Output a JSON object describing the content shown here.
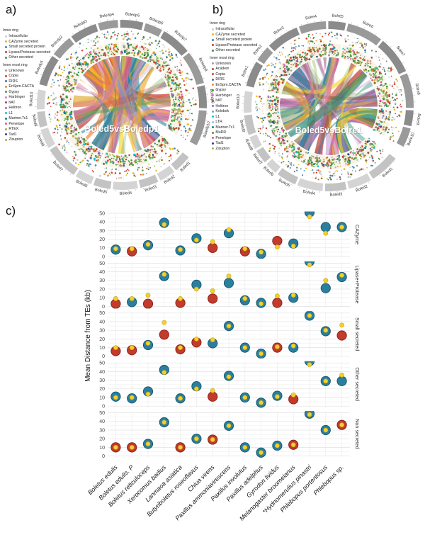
{
  "figure": {
    "panel_a": {
      "label": "a)",
      "center_label": "Boled5vsBoledp1",
      "seed": 20,
      "legend": {
        "inner_ring_title": "Inner ring",
        "innermost_title": "Inner most ring",
        "inner_ring_items": [
          {
            "label": "Intracellular",
            "color": "#cfcfcf"
          },
          {
            "label": "CAZyme secreted",
            "color": "#e8b71f"
          },
          {
            "label": "Small secreted protein",
            "color": "#3d7fae"
          },
          {
            "label": "Lipase/Protease secreted",
            "color": "#cc3a2e"
          },
          {
            "label": "Other secreted",
            "color": "#4c8b4a"
          }
        ],
        "innermost_items": [
          {
            "label": "Unknown",
            "color": "#9e9e9e"
          },
          {
            "label": "Copia",
            "color": "#d93a2b"
          },
          {
            "label": "DIRS",
            "color": "#3a6fb0"
          },
          {
            "label": "EnSpm.CACTA",
            "color": "#f08c1e"
          },
          {
            "label": "Gypsy",
            "color": "#3f9b45"
          },
          {
            "label": "Harbinger",
            "color": "#e377c2"
          },
          {
            "label": "hAT",
            "color": "#8c564b"
          },
          {
            "label": "Helitron",
            "color": "#9467bd"
          },
          {
            "label": "L1",
            "color": "#17becf"
          },
          {
            "label": "Mariner.Tc1",
            "color": "#0e8577"
          },
          {
            "label": "Penelope",
            "color": "#d9578d"
          },
          {
            "label": "RTEX",
            "color": "#b8a832"
          },
          {
            "label": "Tad1",
            "color": "#2b3f8c"
          },
          {
            "label": "Zisupton",
            "color": "#caa83c"
          }
        ]
      },
      "top_segments": [
        "Boledp1",
        "Boledp2",
        "Boledp3",
        "Boledp4",
        "Boledp5",
        "Boledp6",
        "Boledp7",
        "Boledp8",
        "Boledp9",
        "Boledp10"
      ],
      "bottom_segments": [
        "Boled1",
        "Boled2",
        "Boled3",
        "Boled4",
        "Boled5",
        "Boled6",
        "Boled7",
        "Boled8",
        "Boled9",
        "Boled10"
      ],
      "chord_colors": [
        "#f2a21c",
        "#f5d327",
        "#e8762c",
        "#2a7f9e",
        "#e05c8a",
        "#c75d9a",
        "#8c6bb1",
        "#c94a3d",
        "#69a953",
        "#d98ca6",
        "#c9b1d6",
        "#e3b94f",
        "#b0778c",
        "#7f9fd1"
      ]
    },
    "panel_b": {
      "label": "b)",
      "center_label": "Boled5vsBolre1",
      "seed": 77,
      "legend": {
        "inner_ring_title": "Inner ring",
        "innermost_title": "Inner most ring",
        "inner_ring_items": [
          {
            "label": "Intracellular",
            "color": "#cfcfcf"
          },
          {
            "label": "CAZyme secreted",
            "color": "#e8b71f"
          },
          {
            "label": "Small secreted protein",
            "color": "#3d7fae"
          },
          {
            "label": "Lipase/Protease secreted",
            "color": "#cc3a2e"
          },
          {
            "label": "Other secreted",
            "color": "#4c8b4a"
          }
        ],
        "innermost_items": [
          {
            "label": "Unknown",
            "color": "#9e9e9e"
          },
          {
            "label": "Academ",
            "color": "#a0522d"
          },
          {
            "label": "Copia",
            "color": "#d93a2b"
          },
          {
            "label": "DIRS",
            "color": "#3a6fb0"
          },
          {
            "label": "EnSpm.CACTA",
            "color": "#f08c1e"
          },
          {
            "label": "Gypsy",
            "color": "#3f9b45"
          },
          {
            "label": "Harbinger",
            "color": "#e377c2"
          },
          {
            "label": "hAT",
            "color": "#8c564b"
          },
          {
            "label": "Helitron",
            "color": "#9467bd"
          },
          {
            "label": "Kolobok",
            "color": "#5ab4ac"
          },
          {
            "label": "L1",
            "color": "#17becf"
          },
          {
            "label": "LTR",
            "color": "#9db8e8"
          },
          {
            "label": "Mariner.Tc1",
            "color": "#0e8577"
          },
          {
            "label": "MuDR",
            "color": "#7f7f2a"
          },
          {
            "label": "Penelope",
            "color": "#d9578d"
          },
          {
            "label": "Tad1",
            "color": "#2b3f8c"
          },
          {
            "label": "Zisupton",
            "color": "#caa83c"
          }
        ]
      },
      "top_segments": [
        "Bolre1",
        "Bolre2",
        "Bolre3",
        "Bolre4",
        "Bolre5",
        "Bolre6",
        "Bolre7",
        "Bolre8",
        "Bolre9",
        "Bolre10"
      ],
      "bottom_segments": [
        "Boled1",
        "Boled2",
        "Boled3",
        "Boled4",
        "Boled5",
        "Boled6",
        "Boled7",
        "Boled8",
        "Boled9",
        "Boled10"
      ],
      "chord_colors": [
        "#f2a21c",
        "#f5d327",
        "#1f8a70",
        "#2a7f9e",
        "#e05c8a",
        "#c75d9a",
        "#8c6bb1",
        "#6b7f8f",
        "#c94a3d",
        "#d98ca6",
        "#c9b1d6",
        "#a8c97f",
        "#8c5b3f",
        "#d4b2d8"
      ]
    },
    "panel_c": {
      "label": "c)"
    }
  },
  "chart_data": {
    "type": "scatter",
    "title": "",
    "xlabel": "",
    "ylabel": "Mean Distance from TEs (kb)",
    "ylim": [
      0,
      50
    ],
    "yticks": [
      0,
      10,
      20,
      30,
      40,
      50
    ],
    "grid": true,
    "point_styles": {
      "teal": {
        "fill": "#2b7f9e",
        "stroke": "#175b74"
      },
      "red": {
        "fill": "#c23b2d",
        "stroke": "#8c2318"
      },
      "yellow": {
        "fill": "#f3d02b",
        "stroke": "#c7a417"
      }
    },
    "categories": [
      "Boletus edulis",
      "Boletus edulis. P",
      "Boletus reticuloceps",
      "Xerocomus badius",
      "Lanmaoa asiatica",
      "Butyriboletus roseoflavus",
      "Chiua virens",
      "Paxillus ammoniavirescens",
      "Paxillus involutus",
      "Paxillus adelphus",
      "Gyrodon lividus",
      "Melanogaster broomeianus",
      "*Hydnomerulius pinastri",
      "Phlebopus portentosus",
      "Phlebopus sp."
    ],
    "facets": [
      {
        "label": "CAZyme",
        "big_values": [
          8,
          6,
          13,
          39,
          7,
          21,
          10,
          27,
          6,
          3,
          18,
          15,
          51,
          34,
          34
        ],
        "big_colors": [
          "teal",
          "red",
          "teal",
          "teal",
          "teal",
          "teal",
          "red",
          "teal",
          "red",
          "teal",
          "red",
          "teal",
          "teal",
          "teal",
          "teal"
        ],
        "small_values": [
          9,
          9,
          14,
          37,
          8,
          19,
          17,
          31,
          9,
          5,
          11,
          12,
          46,
          27,
          34
        ]
      },
      {
        "label": "Lipase+Protease",
        "big_values": [
          3,
          5,
          3,
          35,
          4,
          25,
          9,
          27,
          7,
          4,
          4,
          10,
          52,
          21,
          34
        ],
        "big_colors": [
          "red",
          "teal",
          "red",
          "teal",
          "red",
          "teal",
          "red",
          "teal",
          "teal",
          "teal",
          "red",
          "teal",
          "teal",
          "teal",
          "teal"
        ],
        "small_values": [
          9,
          9,
          13,
          37,
          9,
          20,
          18,
          35,
          9,
          3,
          12,
          13,
          48,
          30,
          36
        ]
      },
      {
        "label": "Small secreted",
        "big_values": [
          6,
          7,
          13,
          25,
          8,
          16,
          15,
          35,
          10,
          3,
          10,
          10,
          47,
          29,
          24
        ],
        "big_colors": [
          "red",
          "red",
          "teal",
          "red",
          "red",
          "red",
          "teal",
          "teal",
          "teal",
          "teal",
          "red",
          "teal",
          "teal",
          "teal",
          "red"
        ],
        "small_values": [
          10,
          10,
          15,
          39,
          10,
          20,
          19,
          35,
          10,
          3,
          11,
          12,
          47,
          30,
          36
        ]
      },
      {
        "label": "Other secreted",
        "big_values": [
          11,
          9,
          17,
          42,
          9,
          23,
          11,
          35,
          10,
          4,
          12,
          8,
          52,
          29,
          29
        ],
        "big_colors": [
          "teal",
          "teal",
          "teal",
          "teal",
          "teal",
          "teal",
          "red",
          "teal",
          "teal",
          "teal",
          "teal",
          "red",
          "teal",
          "teal",
          "teal"
        ],
        "small_values": [
          10,
          10,
          14,
          39,
          9,
          20,
          18,
          34,
          10,
          4,
          11,
          13,
          48,
          29,
          36
        ]
      },
      {
        "label": "Non secreted",
        "big_values": [
          10,
          10,
          14,
          39,
          10,
          20,
          19,
          35,
          10,
          4,
          12,
          13,
          49,
          30,
          36
        ],
        "big_colors": [
          "red",
          "red",
          "teal",
          "teal",
          "red",
          "teal",
          "red",
          "teal",
          "teal",
          "teal",
          "teal",
          "red",
          "teal",
          "teal",
          "red"
        ],
        "small_values": [
          10,
          10,
          14,
          39,
          10,
          20,
          19,
          35,
          10,
          4,
          12,
          13,
          48,
          30,
          36
        ]
      }
    ]
  }
}
